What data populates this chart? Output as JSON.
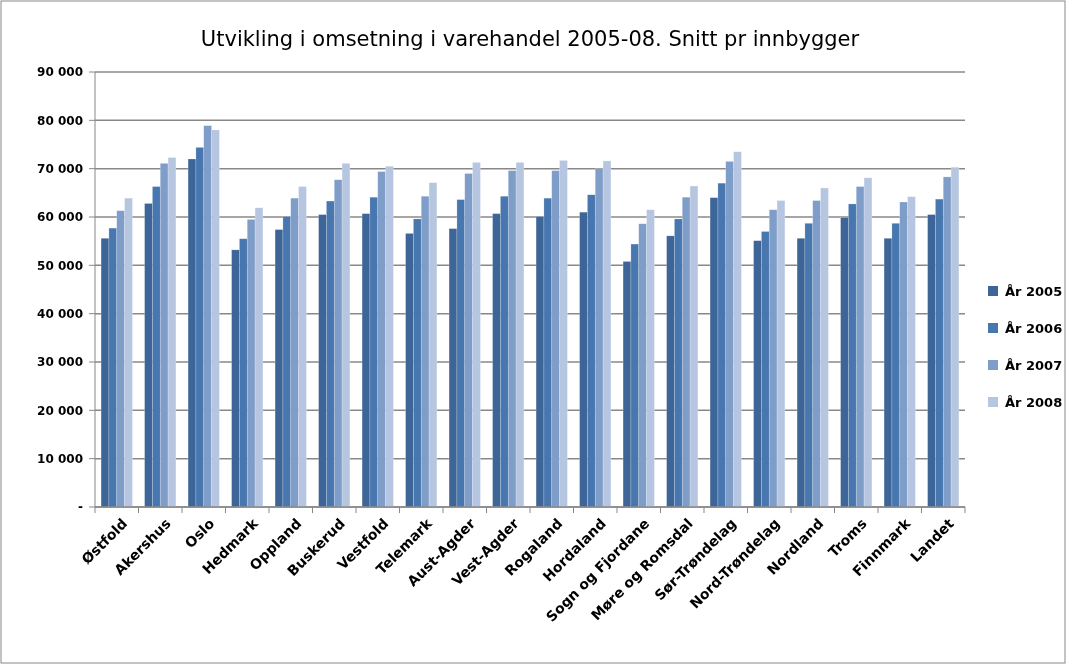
{
  "chart_data": {
    "type": "bar",
    "title": "Utvikling i omsetning i varehandel 2005-08. Snitt pr innbygger",
    "categories": [
      "Østfold",
      "Akershus",
      "Oslo",
      "Hedmark",
      "Oppland",
      "Buskerud",
      "Vestfold",
      "Telemark",
      "Aust-Agder",
      "Vest-Agder",
      "Rogaland",
      "Hordaland",
      "Sogn og Fjordane",
      "Møre og Romsdal",
      "Sør-Trøndelag",
      "Nord-Trøndelag",
      "Nordland",
      "Troms",
      "Finnmark",
      "Landet"
    ],
    "series": [
      {
        "name": "År 2005",
        "color": "#3d6597",
        "values": [
          55600,
          62800,
          72000,
          53200,
          57400,
          60500,
          60700,
          56600,
          57600,
          60700,
          60100,
          61000,
          50800,
          56100,
          64000,
          55100,
          55600,
          59900,
          55600,
          60500
        ]
      },
      {
        "name": "År 2006",
        "color": "#4876af",
        "values": [
          57700,
          66300,
          74400,
          55500,
          60100,
          63300,
          64100,
          59600,
          63600,
          64300,
          63900,
          64600,
          54400,
          59600,
          67000,
          57000,
          58700,
          62700,
          58700,
          63700
        ]
      },
      {
        "name": "År 2007",
        "color": "#7f9dc9",
        "values": [
          61300,
          71100,
          78900,
          59500,
          63900,
          67700,
          69400,
          64300,
          69000,
          69600,
          69600,
          70000,
          58600,
          64100,
          71500,
          61500,
          63400,
          66300,
          63100,
          68300
        ]
      },
      {
        "name": "År 2008",
        "color": "#b6c5e0",
        "values": [
          63900,
          72300,
          78000,
          61900,
          66300,
          71100,
          70500,
          67100,
          71300,
          71300,
          71700,
          71600,
          61500,
          66400,
          73500,
          63400,
          66000,
          68100,
          64200,
          70300
        ]
      }
    ],
    "ylim": [
      0,
      90000
    ],
    "yticks": [
      {
        "value": 0,
        "label": "-"
      },
      {
        "value": 10000,
        "label": "10 000"
      },
      {
        "value": 20000,
        "label": "20 000"
      },
      {
        "value": 30000,
        "label": "30 000"
      },
      {
        "value": 40000,
        "label": "40 000"
      },
      {
        "value": 50000,
        "label": "50 000"
      },
      {
        "value": 60000,
        "label": "60 000"
      },
      {
        "value": 70000,
        "label": "70 000"
      },
      {
        "value": 80000,
        "label": "80 000"
      },
      {
        "value": 90000,
        "label": "90 000"
      }
    ],
    "grid": "y",
    "legend": "right"
  }
}
